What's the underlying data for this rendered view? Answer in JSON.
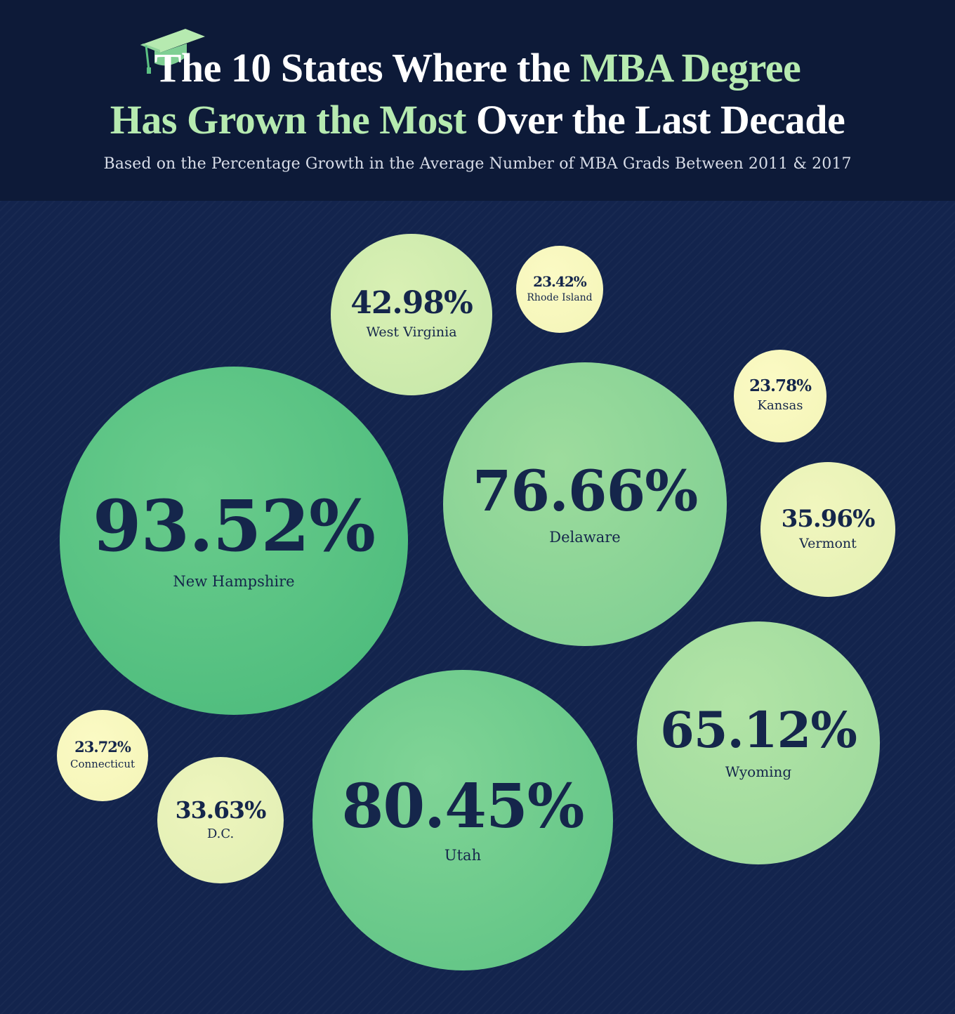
{
  "header": {
    "title_part1": "The 10 States Where the",
    "title_part2": "MBA Degree",
    "title_part3": "Has Grown the Most",
    "title_part4": "Over the Last Decade",
    "subtitle": "Based on the Percentage Growth in the Average Number of MBA Grads Between 2011 & 2017",
    "icon": "graduation-cap-icon"
  },
  "colors": {
    "background": "#12224a",
    "header_background": "#0d1a38",
    "highlight": "#b6eab0",
    "text_dark": "#15264b",
    "bubble_large": "#5cc283",
    "bubble_medium": "#a6dd9c",
    "bubble_small": "#f8f8bc"
  },
  "chart_data": {
    "type": "bubble",
    "unit": "%",
    "items": [
      {
        "label": "New Hampshire",
        "value": 93.52,
        "display": "93.52%"
      },
      {
        "label": "Utah",
        "value": 80.45,
        "display": "80.45%"
      },
      {
        "label": "Delaware",
        "value": 76.66,
        "display": "76.66%"
      },
      {
        "label": "Wyoming",
        "value": 65.12,
        "display": "65.12%"
      },
      {
        "label": "West Virginia",
        "value": 42.98,
        "display": "42.98%"
      },
      {
        "label": "Vermont",
        "value": 35.96,
        "display": "35.96%"
      },
      {
        "label": "D.C.",
        "value": 33.63,
        "display": "33.63%"
      },
      {
        "label": "Kansas",
        "value": 23.78,
        "display": "23.78%"
      },
      {
        "label": "Connecticut",
        "value": 23.72,
        "display": "23.72%"
      },
      {
        "label": "Rhode Island",
        "value": 23.42,
        "display": "23.42%"
      }
    ]
  }
}
